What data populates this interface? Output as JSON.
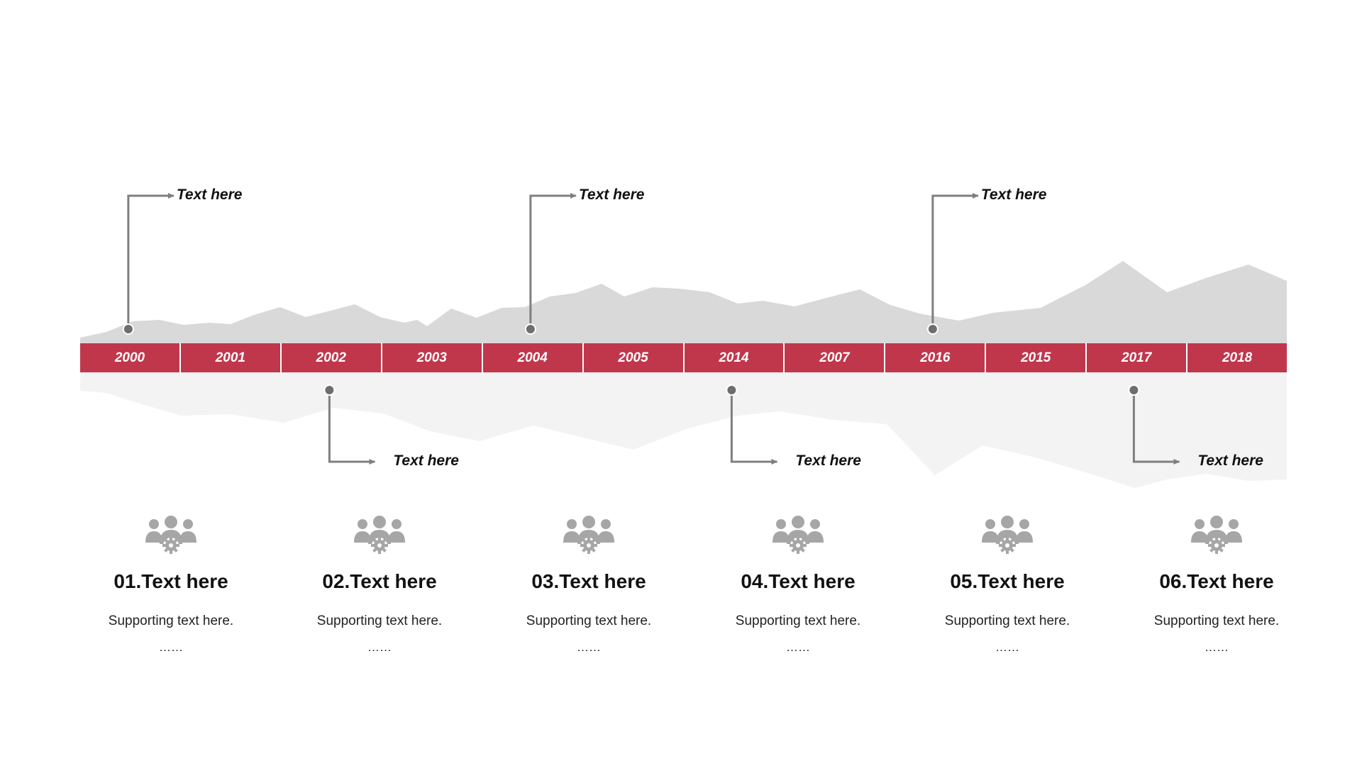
{
  "colors": {
    "accent": "#c0364b",
    "mountain_top": "#d9d9d9",
    "mountain_bottom": "#f3f3f3",
    "connector": "#7f7f7f",
    "dot": "#6e6e6e",
    "icon": "#a6a6a6"
  },
  "timeline": {
    "years": [
      "2000",
      "2001",
      "2002",
      "2003",
      "2004",
      "2005",
      "2014",
      "2007",
      "2016",
      "2015",
      "2017",
      "2018"
    ]
  },
  "callouts": {
    "top": [
      {
        "year": "2000",
        "label": "Text here"
      },
      {
        "year": "2004",
        "label": "Text here"
      },
      {
        "year": "2016",
        "label": "Text here"
      }
    ],
    "bottom": [
      {
        "year": "2002",
        "label": "Text here"
      },
      {
        "year": "2014",
        "label": "Text here"
      },
      {
        "year": "2017",
        "label": "Text here"
      }
    ]
  },
  "items": [
    {
      "icon": "team-settings-icon",
      "title": "01.Text here",
      "support": "Supporting text here.",
      "dots": "……"
    },
    {
      "icon": "team-settings-icon",
      "title": "02.Text here",
      "support": "Supporting text here.",
      "dots": "……"
    },
    {
      "icon": "team-settings-icon",
      "title": "03.Text here",
      "support": "Supporting text here.",
      "dots": "……"
    },
    {
      "icon": "team-settings-icon",
      "title": "04.Text here",
      "support": "Supporting text here.",
      "dots": "……"
    },
    {
      "icon": "team-settings-icon",
      "title": "05.Text here",
      "support": "Supporting text here.",
      "dots": "……"
    },
    {
      "icon": "team-settings-icon",
      "title": "06.Text here",
      "support": "Supporting text here.",
      "dots": "……"
    }
  ]
}
